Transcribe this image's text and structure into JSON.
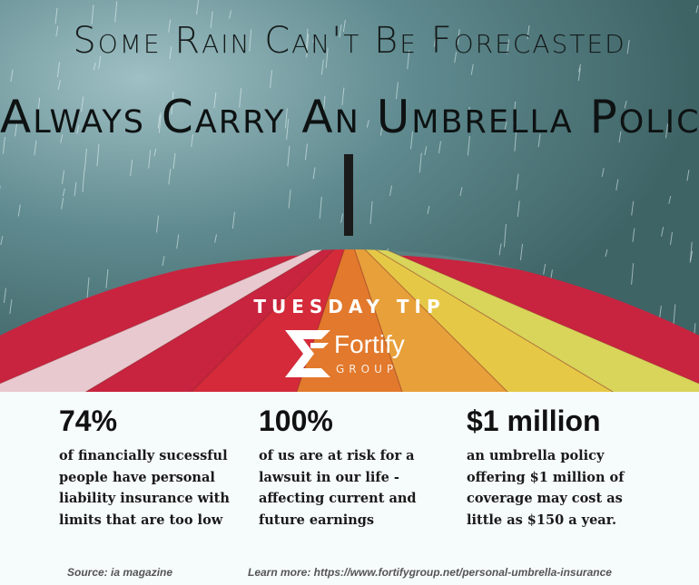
{
  "header": {
    "subtitle": "Some Rain Can't Be Forecasted",
    "title": "Always Carry An Umbrella Policy"
  },
  "badge": {
    "label": "TUESDAY TIP"
  },
  "logo": {
    "name": "Fortify",
    "group": "GROUP"
  },
  "stats": [
    {
      "value": "74%",
      "description": "of financially sucessful people have personal liability insurance with limits that are too low"
    },
    {
      "value": "100%",
      "description": "of us are at risk for a lawsuit in our life - affecting current and future earnings"
    },
    {
      "value": "$1 million",
      "description": "an umbrella policy offering $1 million of coverage may cost as little as $150 a year."
    }
  ],
  "footer": {
    "source": "Source: ia magazine",
    "learn_more": "Learn more: https://www.fortifygroup.net/personal-umbrella-insurance"
  },
  "colors": {
    "panel": "#f6fbfb",
    "umbrella": [
      "#e8c9cf",
      "#c8243f",
      "#d42a3a",
      "#e2792c",
      "#e8a03a",
      "#e6c847",
      "#d9d45a"
    ]
  }
}
